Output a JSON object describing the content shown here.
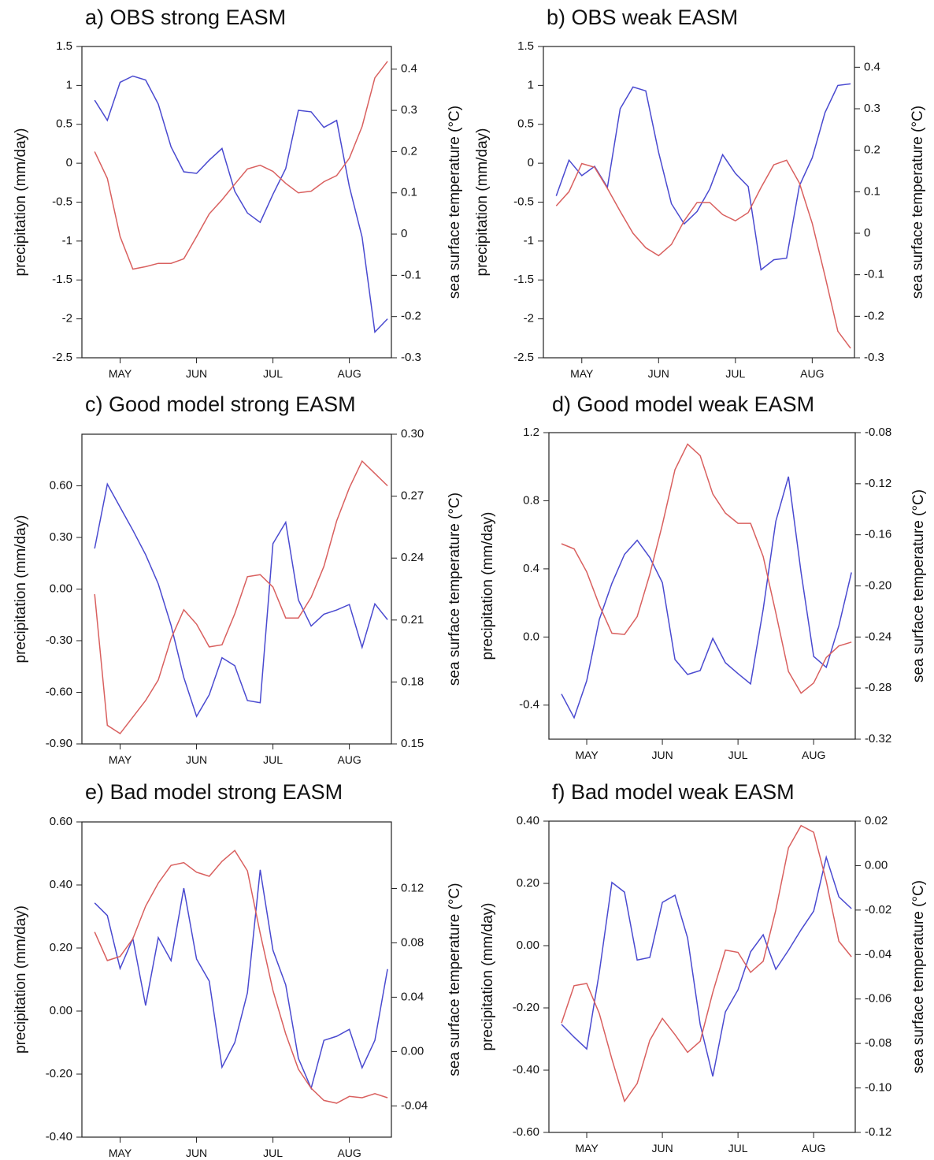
{
  "chart_data": [
    {
      "type": "line",
      "title": "a) OBS strong EASM",
      "categories": [
        null,
        null,
        "MAY",
        null,
        null,
        null,
        null,
        null,
        "JUN",
        null,
        null,
        null,
        null,
        null,
        "JUL",
        null,
        null,
        null,
        null,
        null,
        "AUG",
        null,
        null,
        null
      ],
      "ylabel": "precipitation (mm/day)",
      "y2label": "sea surface temperature (°C)",
      "ylim": [
        -2.5,
        1.5
      ],
      "yticks": [
        -2.5,
        -2,
        -1.5,
        -1,
        -0.5,
        0,
        0.5,
        1,
        1.5
      ],
      "y2lim": [
        -0.3,
        0.455
      ],
      "y2ticks": [
        -0.3,
        -0.2,
        -0.1,
        0,
        0.1,
        0.2,
        0.3,
        0.4
      ],
      "series": [
        {
          "color": "#4a4ad0",
          "values": [
            0.81,
            0.55,
            1.04,
            1.12,
            1.07,
            0.76,
            0.21,
            -0.11,
            -0.13,
            0.04,
            0.19,
            -0.36,
            -0.64,
            -0.76,
            -0.4,
            -0.07,
            0.68,
            0.66,
            0.46,
            0.55,
            -0.3,
            -0.95,
            -2.17,
            -2.0
          ]
        },
        {
          "color": "#d9605f",
          "axis": "y2",
          "values": [
            0.2,
            0.135,
            -0.006,
            -0.085,
            -0.079,
            -0.071,
            -0.071,
            -0.06,
            -0.006,
            0.049,
            0.083,
            0.121,
            0.158,
            0.167,
            0.152,
            0.123,
            0.1,
            0.104,
            0.127,
            0.142,
            0.184,
            0.261,
            0.379,
            0.419
          ]
        }
      ]
    },
    {
      "type": "line",
      "title": "b) OBS weak EASM",
      "categories": [
        null,
        null,
        "MAY",
        null,
        null,
        null,
        null,
        null,
        "JUN",
        null,
        null,
        null,
        null,
        null,
        "JUL",
        null,
        null,
        null,
        null,
        null,
        "AUG",
        null,
        null,
        null
      ],
      "ylabel": "precipitation (mm/day)",
      "y2label": "sea surface temperature (°C)",
      "ylim": [
        -2.5,
        1.5
      ],
      "yticks": [
        -2.5,
        -2,
        -1.5,
        -1,
        -0.5,
        0,
        0.5,
        1,
        1.5
      ],
      "y2lim": [
        -0.3,
        0.45
      ],
      "y2ticks": [
        -0.3,
        -0.2,
        -0.1,
        0,
        0.1,
        0.2,
        0.3,
        0.4
      ],
      "series": [
        {
          "color": "#4a4ad0",
          "values": [
            -0.42,
            0.04,
            -0.16,
            -0.04,
            -0.31,
            0.7,
            0.98,
            0.93,
            0.14,
            -0.52,
            -0.78,
            -0.62,
            -0.33,
            0.11,
            -0.13,
            -0.3,
            -1.37,
            -1.24,
            -1.22,
            -0.29,
            0.07,
            0.65,
            1.0,
            1.02
          ]
        },
        {
          "color": "#d9605f",
          "axis": "y2",
          "values": [
            0.066,
            0.1,
            0.168,
            0.159,
            0.108,
            0.053,
            0.0,
            -0.035,
            -0.054,
            -0.027,
            0.03,
            0.074,
            0.074,
            0.045,
            0.03,
            0.05,
            0.11,
            0.165,
            0.176,
            0.121,
            0.024,
            -0.103,
            -0.236,
            -0.277
          ]
        }
      ]
    },
    {
      "type": "line",
      "title": "c) Good model strong EASM",
      "categories": [
        null,
        null,
        "MAY",
        null,
        null,
        null,
        null,
        null,
        "JUN",
        null,
        null,
        null,
        null,
        null,
        "JUL",
        null,
        null,
        null,
        null,
        null,
        "AUG",
        null,
        null,
        null
      ],
      "ylabel": "precipitation (mm/day)",
      "y2label": "sea surface temperature (°C)",
      "ylim": [
        -0.9,
        0.9
      ],
      "yticks": [
        {
          "value": -0.9,
          "label": "-0.90"
        },
        {
          "value": -0.6,
          "label": "-0.60"
        },
        {
          "value": -0.3,
          "label": "-0.30"
        },
        {
          "value": 0,
          "label": "0.00"
        },
        {
          "value": 0.3,
          "label": "0.30"
        },
        {
          "value": 0.6,
          "label": "0.60"
        }
      ],
      "y2lim": [
        0.15,
        0.3
      ],
      "y2ticks": [
        0.15,
        0.18,
        {
          "value": 0.21,
          "label": "0.21"
        },
        0.24,
        0.27,
        {
          "value": 0.3,
          "label": "0.30"
        }
      ],
      "series": [
        {
          "color": "#4a4ad0",
          "values": [
            0.236,
            0.61,
            0.476,
            0.342,
            0.2,
            0.03,
            -0.21,
            -0.514,
            -0.74,
            -0.614,
            -0.399,
            -0.445,
            -0.648,
            -0.661,
            0.264,
            0.388,
            -0.063,
            -0.215,
            -0.146,
            -0.122,
            -0.09,
            -0.339,
            -0.086,
            -0.178
          ]
        },
        {
          "color": "#d9605f",
          "axis": "y2",
          "values": [
            0.2225,
            0.159,
            0.155,
            0.163,
            0.171,
            0.181,
            0.201,
            0.215,
            0.208,
            0.197,
            0.198,
            0.213,
            0.231,
            0.232,
            0.226,
            0.211,
            0.211,
            0.221,
            0.236,
            0.258,
            0.274,
            0.287,
            0.281,
            0.275
          ]
        }
      ]
    },
    {
      "type": "line",
      "title": "d) Good model weak EASM",
      "categories": [
        null,
        null,
        "MAY",
        null,
        null,
        null,
        null,
        null,
        "JUN",
        null,
        null,
        null,
        null,
        null,
        "JUL",
        null,
        null,
        null,
        null,
        null,
        "AUG",
        null,
        null,
        null
      ],
      "ylabel": "precipitation (mm/day)",
      "y2label": "sea surface temperature (°C)",
      "ylim": [
        -0.6,
        1.2
      ],
      "yticks": [
        -0.4,
        {
          "value": 0,
          "label": "0.0"
        },
        0.4,
        0.8,
        1.2
      ],
      "y2lim": [
        -0.32,
        -0.08
      ],
      "y2ticks": [
        -0.32,
        -0.28,
        -0.24,
        {
          "value": -0.2,
          "label": "-0.20"
        },
        -0.16,
        -0.12,
        -0.08
      ],
      "series": [
        {
          "color": "#4a4ad0",
          "values": [
            -0.335,
            -0.474,
            -0.257,
            0.103,
            0.315,
            0.485,
            0.568,
            0.467,
            0.319,
            -0.132,
            -0.22,
            -0.197,
            -0.008,
            -0.151,
            -0.215,
            -0.275,
            0.163,
            0.679,
            0.942,
            0.379,
            -0.114,
            -0.178,
            0.066,
            0.379
          ]
        },
        {
          "color": "#d9605f",
          "axis": "y2",
          "values": [
            -0.167,
            -0.171,
            -0.189,
            -0.215,
            -0.237,
            -0.238,
            -0.224,
            -0.191,
            -0.152,
            -0.109,
            -0.089,
            -0.098,
            -0.128,
            -0.143,
            -0.151,
            -0.151,
            -0.177,
            -0.221,
            -0.267,
            -0.284,
            -0.276,
            -0.256,
            -0.247,
            -0.244
          ]
        }
      ]
    },
    {
      "type": "line",
      "title": "e) Bad model strong EASM",
      "categories": [
        null,
        null,
        "MAY",
        null,
        null,
        null,
        null,
        null,
        "JUN",
        null,
        null,
        null,
        null,
        null,
        "JUL",
        null,
        null,
        null,
        null,
        null,
        "AUG",
        null,
        null,
        null
      ],
      "ylabel": "precipitation (mm/day)",
      "y2label": "sea surface temperature (°C)",
      "ylim": [
        -0.4,
        0.6
      ],
      "yticks": [
        {
          "value": -0.4,
          "label": "-0.40"
        },
        {
          "value": -0.2,
          "label": "-0.20"
        },
        {
          "value": 0,
          "label": "0.00"
        },
        {
          "value": 0.2,
          "label": "0.20"
        },
        {
          "value": 0.4,
          "label": "0.40"
        },
        {
          "value": 0.6,
          "label": "0.60"
        }
      ],
      "y2lim": [
        -0.063,
        0.169
      ],
      "y2ticks": [
        -0.04,
        {
          "value": 0,
          "label": "0.00"
        },
        0.04,
        0.08,
        0.12
      ],
      "series": [
        {
          "color": "#4a4ad0",
          "values": [
            0.343,
            0.303,
            0.135,
            0.23,
            0.018,
            0.233,
            0.16,
            0.39,
            0.165,
            0.095,
            -0.178,
            -0.1,
            0.058,
            0.448,
            0.193,
            0.083,
            -0.15,
            -0.245,
            -0.093,
            -0.08,
            -0.058,
            -0.18,
            -0.093,
            0.133
          ]
        },
        {
          "color": "#d9605f",
          "axis": "y2",
          "values": [
            0.088,
            0.067,
            0.07,
            0.083,
            0.107,
            0.124,
            0.137,
            0.139,
            0.132,
            0.129,
            0.14,
            0.148,
            0.133,
            0.087,
            0.045,
            0.013,
            -0.013,
            -0.027,
            -0.036,
            -0.038,
            -0.033,
            -0.034,
            -0.031,
            -0.034
          ]
        }
      ]
    },
    {
      "type": "line",
      "title": "f) Bad model weak EASM",
      "categories": [
        null,
        null,
        "MAY",
        null,
        null,
        null,
        null,
        null,
        "JUN",
        null,
        null,
        null,
        null,
        null,
        "JUL",
        null,
        null,
        null,
        null,
        null,
        "AUG",
        null,
        null,
        null
      ],
      "ylabel": "precipitation (mm/day)",
      "y2label": "sea surface temperature (°C)",
      "ylim": [
        -0.6,
        0.4
      ],
      "yticks": [
        {
          "value": -0.6,
          "label": "-0.60"
        },
        {
          "value": -0.4,
          "label": "-0.40"
        },
        {
          "value": -0.2,
          "label": "-0.20"
        },
        {
          "value": 0,
          "label": "0.00"
        },
        {
          "value": 0.2,
          "label": "0.20"
        },
        {
          "value": 0.4,
          "label": "0.40"
        }
      ],
      "y2lim": [
        -0.12,
        0.02
      ],
      "y2ticks": [
        -0.12,
        {
          "value": -0.1,
          "label": "-0.10"
        },
        -0.08,
        -0.06,
        -0.04,
        -0.02,
        {
          "value": 0,
          "label": "0.00"
        },
        0.02
      ],
      "series": [
        {
          "color": "#4a4ad0",
          "values": [
            -0.253,
            -0.294,
            -0.332,
            -0.086,
            0.203,
            0.172,
            -0.046,
            -0.038,
            0.139,
            0.162,
            0.025,
            -0.253,
            -0.42,
            -0.213,
            -0.142,
            -0.02,
            0.035,
            -0.076,
            -0.015,
            0.051,
            0.111,
            0.284,
            0.157,
            0.119
          ]
        },
        {
          "color": "#d9605f",
          "axis": "y2",
          "values": [
            -0.0708,
            -0.054,
            -0.053,
            -0.0665,
            -0.087,
            -0.106,
            -0.098,
            -0.0786,
            -0.0687,
            -0.076,
            -0.084,
            -0.079,
            -0.057,
            -0.038,
            -0.039,
            -0.048,
            -0.043,
            -0.02,
            0.008,
            0.018,
            0.015,
            -0.007,
            -0.034,
            -0.041
          ]
        }
      ]
    }
  ]
}
